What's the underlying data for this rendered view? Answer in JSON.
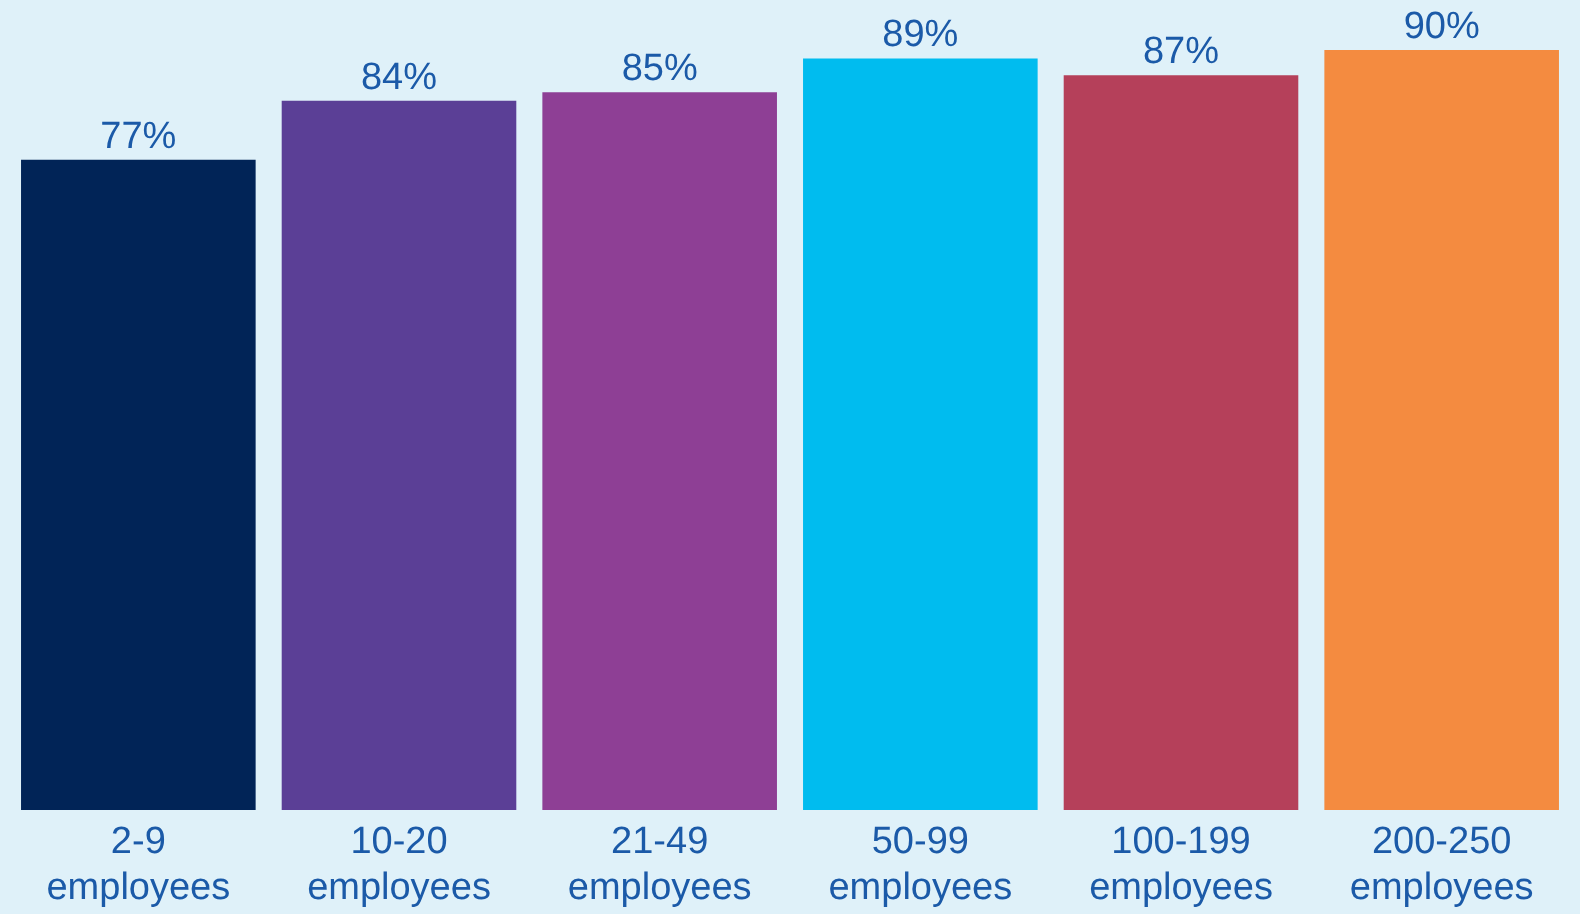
{
  "chart_data": {
    "type": "bar",
    "categories": [
      "2-9 employees",
      "10-20 employees",
      "21-49 employees",
      "50-99 employees",
      "100-199 employees",
      "200-250 employees"
    ],
    "values": [
      77,
      84,
      85,
      89,
      87,
      90
    ],
    "colors": [
      "#012457",
      "#5b3f96",
      "#8e3f95",
      "#00bcef",
      "#b5405a",
      "#f48b40"
    ],
    "value_labels": [
      "77%",
      "84%",
      "85%",
      "89%",
      "87%",
      "90%"
    ]
  }
}
